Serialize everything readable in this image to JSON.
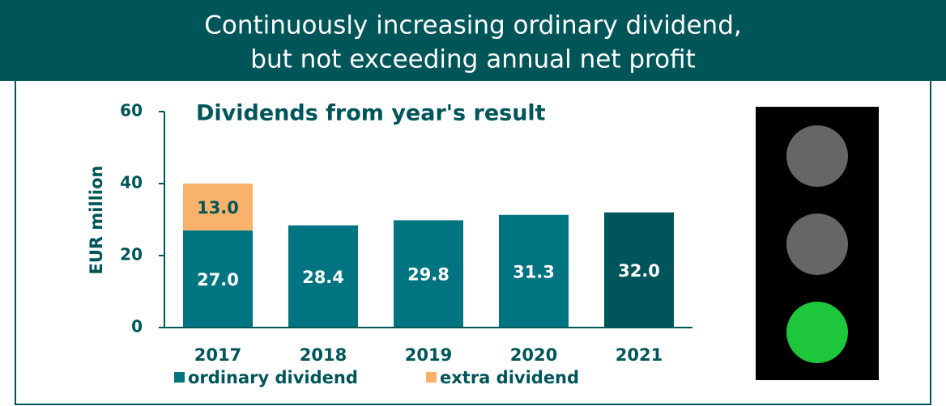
{
  "header": {
    "title_lines": [
      "Continuously increasing ordinary dividend,",
      "but not exceeding annual net profit"
    ]
  },
  "chart_data": {
    "type": "stacked_bar",
    "title": "Dividends from year's result",
    "y_label": "EUR million",
    "categories": [
      "2017",
      "2018",
      "2019",
      "2020",
      "2021"
    ],
    "series": [
      {
        "name": "ordinary dividend",
        "color": "#007480",
        "colors": [
          "#007480",
          "#007480",
          "#007480",
          "#007480",
          "#00555b"
        ],
        "values": [
          27.0,
          28.4,
          29.8,
          31.3,
          32.0
        ],
        "value_labels": [
          "27.0",
          "28.4",
          "29.8",
          "31.3",
          "32.0"
        ]
      },
      {
        "name": "extra dividend",
        "color": "#f9b26b",
        "values": [
          13.0,
          null,
          null,
          null,
          null
        ],
        "value_labels": [
          "13.0",
          null,
          null,
          null,
          null
        ]
      }
    ],
    "ylim": [
      0,
      60
    ],
    "yticks": [
      0,
      20,
      40,
      60
    ],
    "legend": "bottom"
  }
}
